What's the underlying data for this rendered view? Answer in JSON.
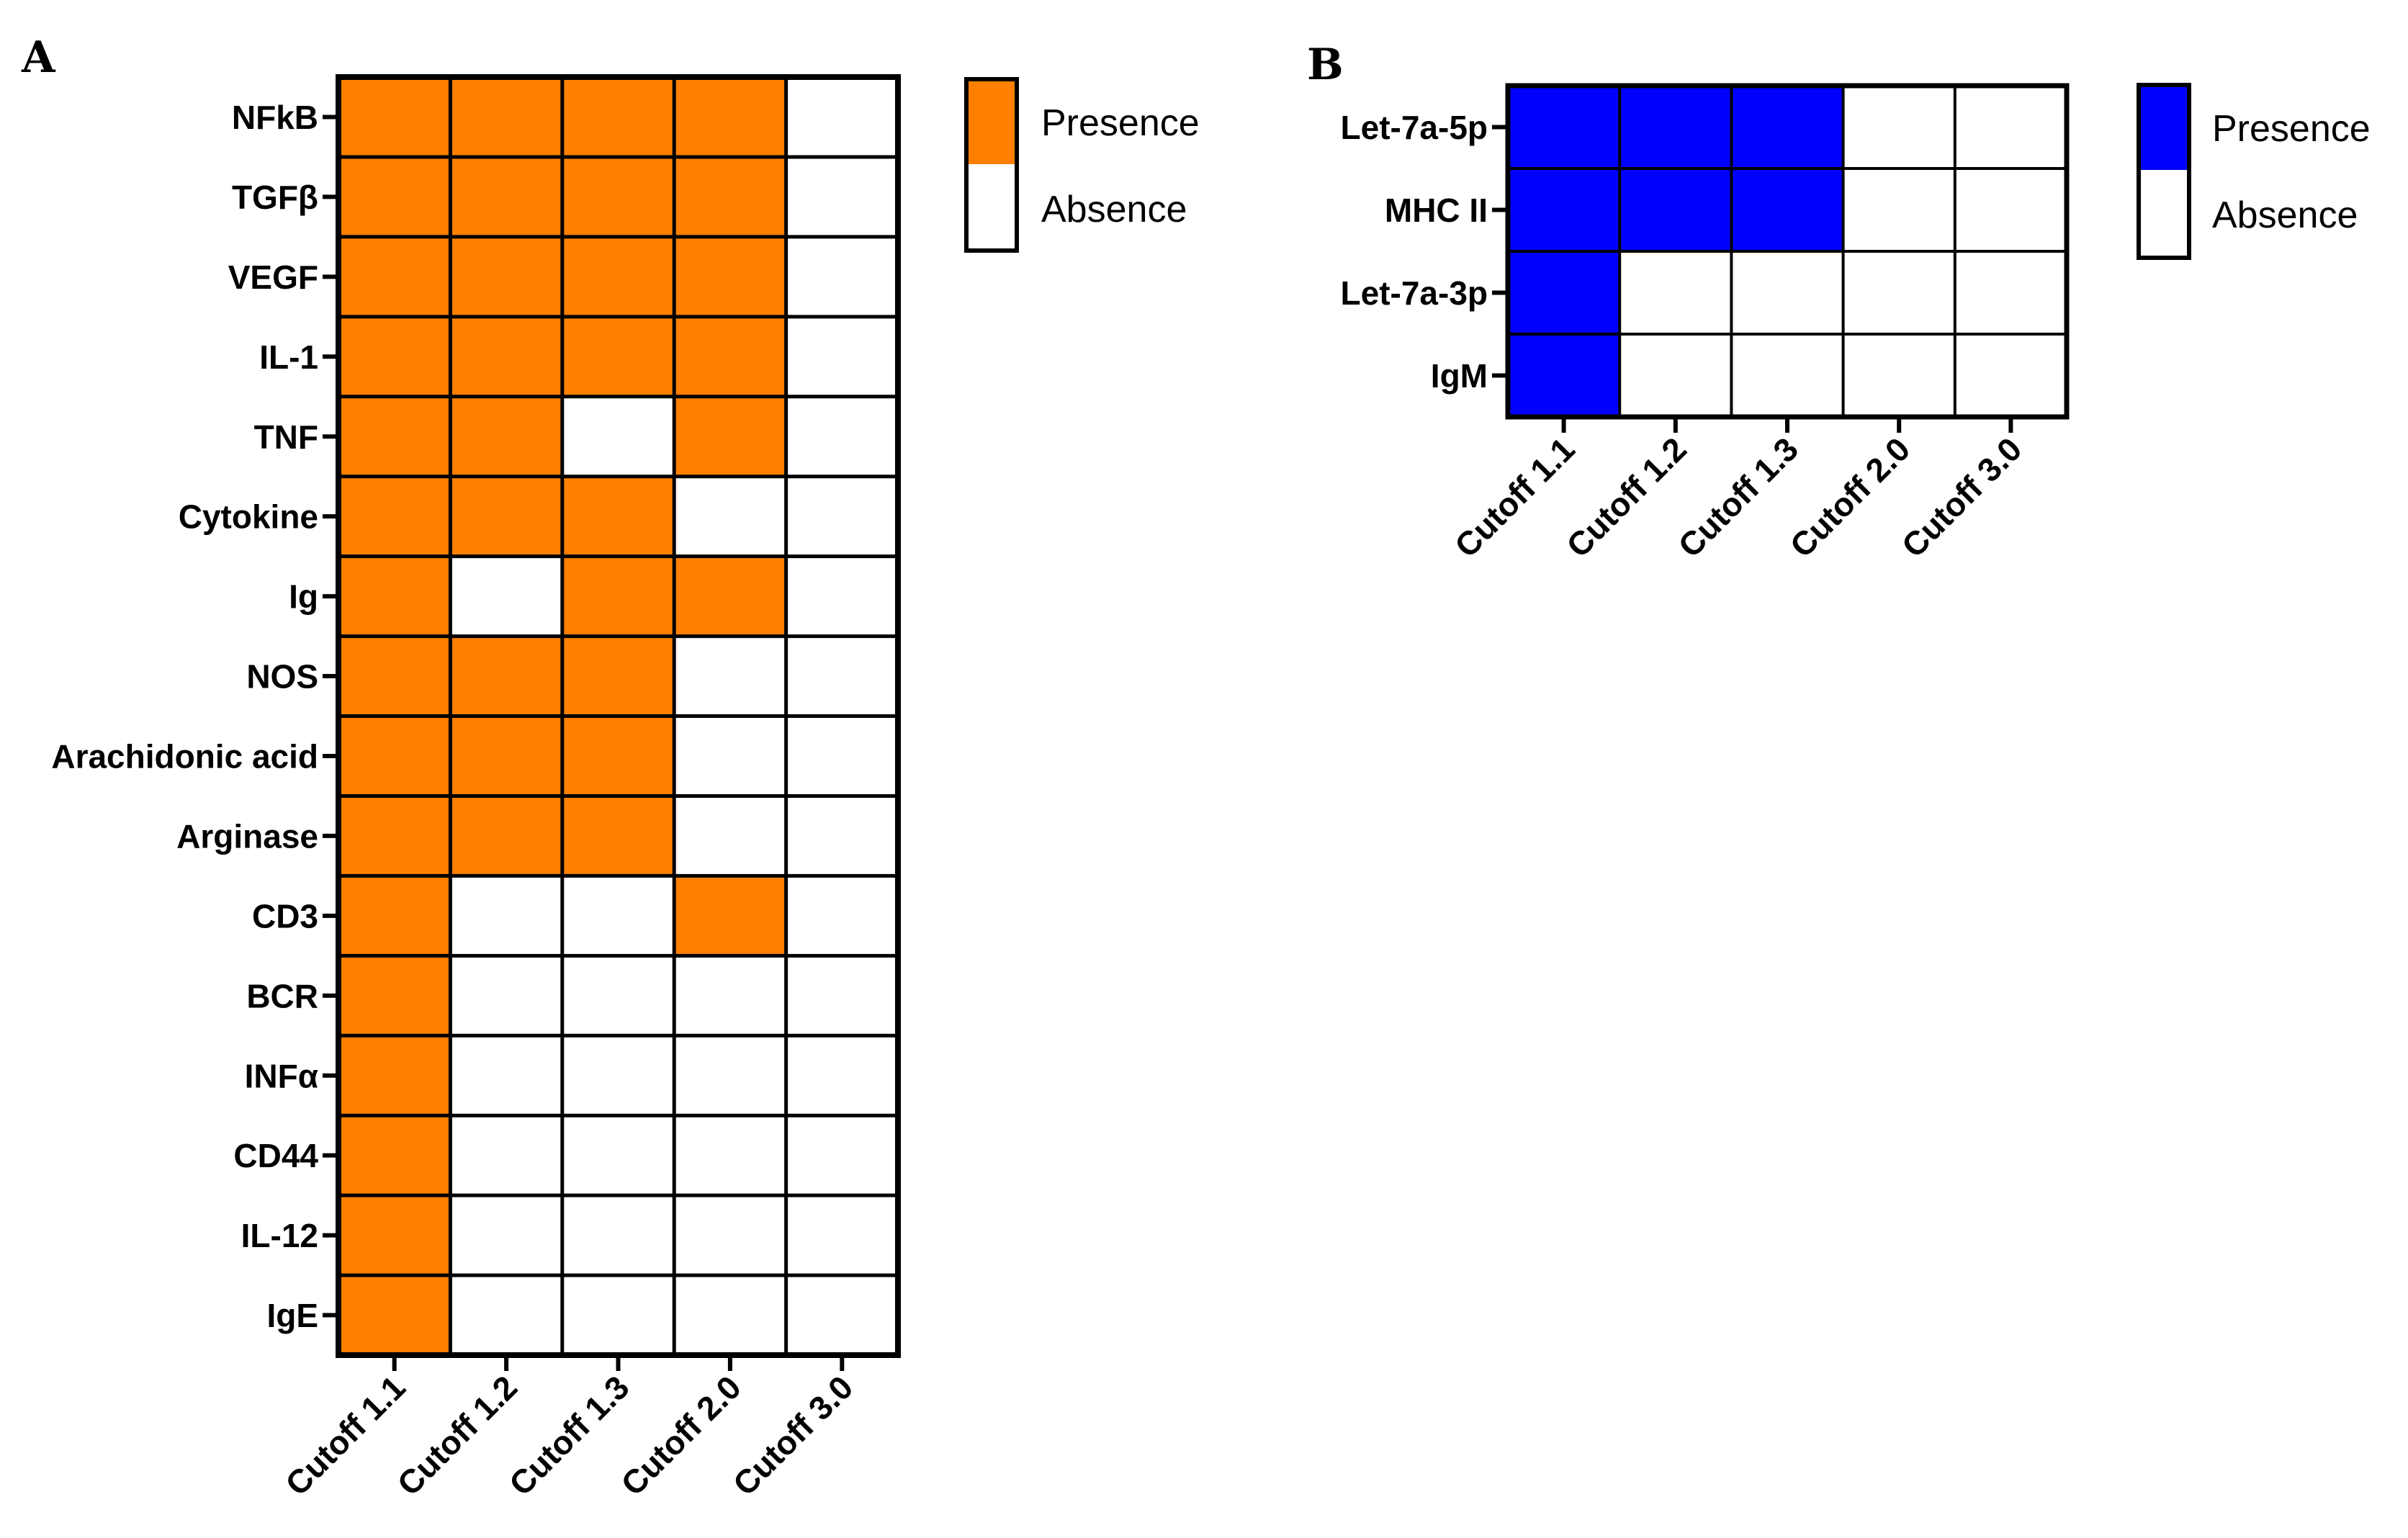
{
  "panels": [
    {
      "letter": "A",
      "present_color": "#FF8000",
      "absent_color": "#FFFFFF",
      "legend": {
        "presence": "Presence",
        "absence": "Absence"
      }
    },
    {
      "letter": "B",
      "present_color": "#0000FF",
      "absent_color": "#FFFFFF",
      "legend": {
        "presence": "Presence",
        "absence": "Absence"
      }
    }
  ],
  "chart_data": [
    {
      "type": "heatmap",
      "title": "A",
      "columns": [
        "Cutoff 1.1",
        "Cutoff 1.2",
        "Cutoff 1.3",
        "Cutoff 2.0",
        "Cutoff 3.0"
      ],
      "rows": [
        "NFkB",
        "TGFβ",
        "VEGF",
        "IL-1",
        "TNF",
        "Cytokine",
        "Ig",
        "NOS",
        "Arachidonic acid",
        "Arginase",
        "CD3",
        "BCR",
        "INFα",
        "CD44",
        "IL-12",
        "IgE"
      ],
      "values": [
        [
          1,
          1,
          1,
          1,
          0
        ],
        [
          1,
          1,
          1,
          1,
          0
        ],
        [
          1,
          1,
          1,
          1,
          0
        ],
        [
          1,
          1,
          1,
          1,
          0
        ],
        [
          1,
          1,
          0,
          1,
          0
        ],
        [
          1,
          1,
          1,
          0,
          0
        ],
        [
          1,
          0,
          1,
          1,
          0
        ],
        [
          1,
          1,
          1,
          0,
          0
        ],
        [
          1,
          1,
          1,
          0,
          0
        ],
        [
          1,
          1,
          1,
          0,
          0
        ],
        [
          1,
          0,
          0,
          1,
          0
        ],
        [
          1,
          0,
          0,
          0,
          0
        ],
        [
          1,
          0,
          0,
          0,
          0
        ],
        [
          1,
          0,
          0,
          0,
          0
        ],
        [
          1,
          0,
          0,
          0,
          0
        ],
        [
          1,
          0,
          0,
          0,
          0
        ]
      ],
      "value_legend": {
        "1": "Presence",
        "0": "Absence"
      }
    },
    {
      "type": "heatmap",
      "title": "B",
      "columns": [
        "Cutoff 1.1",
        "Cutoff 1.2",
        "Cutoff 1.3",
        "Cutoff 2.0",
        "Cutoff 3.0"
      ],
      "rows": [
        "Let-7a-5p",
        "MHC II",
        "Let-7a-3p",
        "IgM"
      ],
      "values": [
        [
          1,
          1,
          1,
          0,
          0
        ],
        [
          1,
          1,
          1,
          0,
          0
        ],
        [
          1,
          0,
          0,
          0,
          0
        ],
        [
          1,
          0,
          0,
          0,
          0
        ]
      ],
      "value_legend": {
        "1": "Presence",
        "0": "Absence"
      }
    }
  ]
}
